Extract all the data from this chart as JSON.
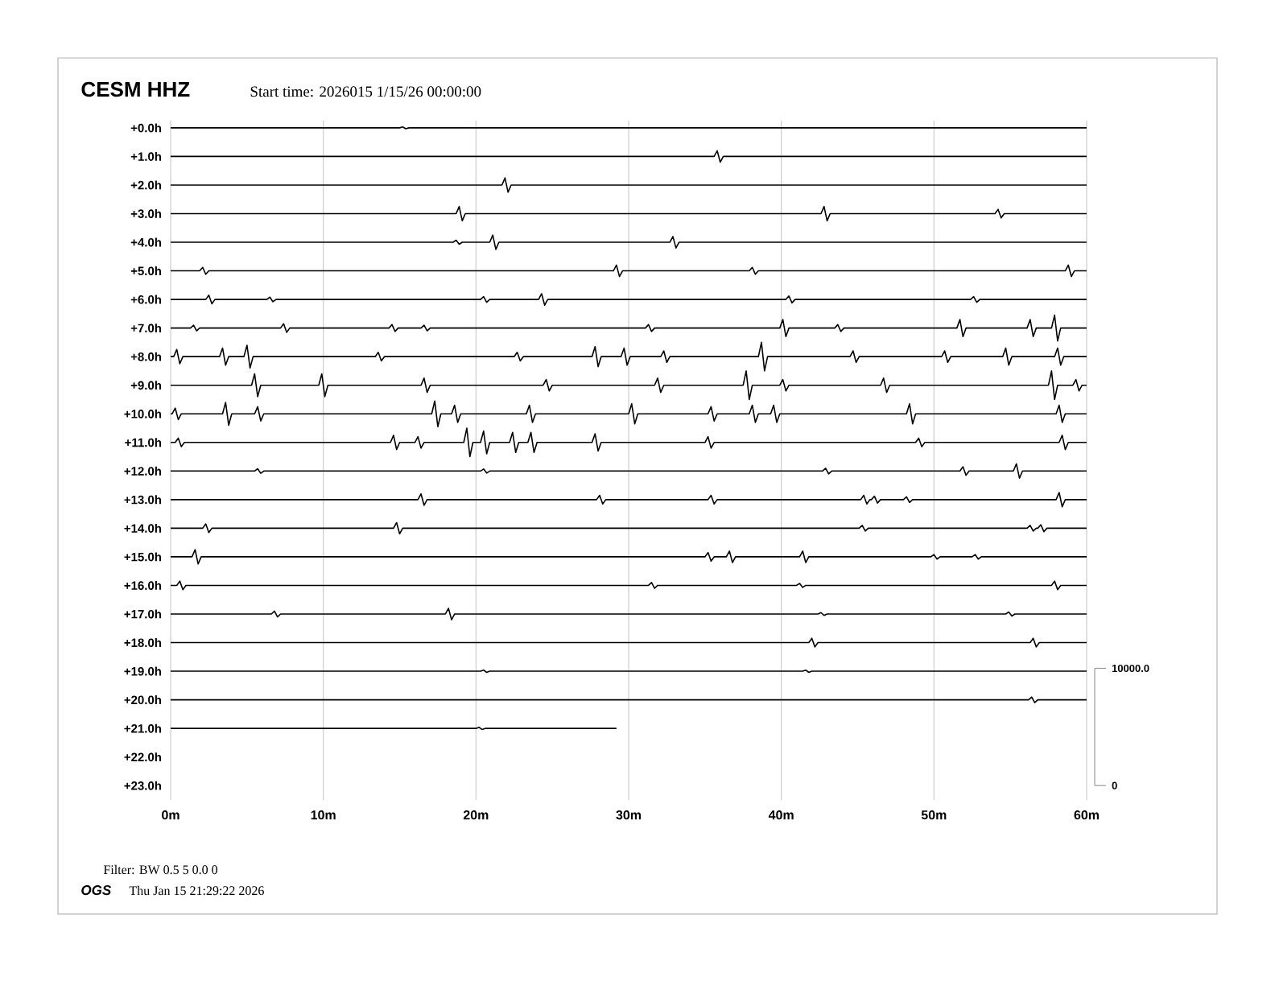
{
  "chart_data": {
    "type": "line",
    "title": "CESM HHZ",
    "subtitle": "Start time: 2026015  1/15/26 00:00:00",
    "xlim": [
      0,
      60
    ],
    "xticks": [
      {
        "value": 0,
        "label": "0m"
      },
      {
        "value": 10,
        "label": "10m"
      },
      {
        "value": 20,
        "label": "20m"
      },
      {
        "value": 30,
        "label": "30m"
      },
      {
        "value": 40,
        "label": "40m"
      },
      {
        "value": 50,
        "label": "50m"
      },
      {
        "value": 60,
        "label": "60m"
      }
    ],
    "ylim": [
      23.5,
      -0.25
    ],
    "yticks": [
      {
        "value": 0,
        "label": "+0.0h"
      },
      {
        "value": 1,
        "label": "+1.0h"
      },
      {
        "value": 2,
        "label": "+2.0h"
      },
      {
        "value": 3,
        "label": "+3.0h"
      },
      {
        "value": 4,
        "label": "+4.0h"
      },
      {
        "value": 5,
        "label": "+5.0h"
      },
      {
        "value": 6,
        "label": "+6.0h"
      },
      {
        "value": 7,
        "label": "+7.0h"
      },
      {
        "value": 8,
        "label": "+8.0h"
      },
      {
        "value": 9,
        "label": "+9.0h"
      },
      {
        "value": 10,
        "label": "+10.0h"
      },
      {
        "value": 11,
        "label": "+11.0h"
      },
      {
        "value": 12,
        "label": "+12.0h"
      },
      {
        "value": 13,
        "label": "+13.0h"
      },
      {
        "value": 14,
        "label": "+14.0h"
      },
      {
        "value": 15,
        "label": "+15.0h"
      },
      {
        "value": 16,
        "label": "+16.0h"
      },
      {
        "value": 17,
        "label": "+17.0h"
      },
      {
        "value": 18,
        "label": "+18.0h"
      },
      {
        "value": 19,
        "label": "+19.0h"
      },
      {
        "value": 20,
        "label": "+20.0h"
      },
      {
        "value": 21,
        "label": "+21.0h"
      },
      {
        "value": 22,
        "label": "+22.0h"
      },
      {
        "value": 23,
        "label": "+23.0h"
      }
    ],
    "y2lim": [
      -1220,
      56700
    ],
    "y2ticks": [
      0,
      {
        "value": 10000,
        "label": "10000.0"
      }
    ],
    "grid": "x",
    "annotations": [
      "Filter: BW 0.5 5 0.0 0",
      "OGS",
      "Thu Jan 15 21:29:22 2026"
    ],
    "series": [
      {
        "color": "#000000",
        "x": [
          0,
          15,
          15.2,
          15.4,
          15.6,
          60
        ],
        "values": [
          0,
          0,
          -0.03,
          0.03,
          0,
          0
        ]
      },
      {
        "color": "#000000",
        "x": [
          0,
          35.6,
          35.8,
          36,
          36.2,
          60
        ],
        "values": [
          1,
          1,
          0.8,
          1.2,
          1,
          1
        ]
      },
      {
        "color": "#000000",
        "x": [
          0,
          21.7,
          21.9,
          22.1,
          22.3,
          60
        ],
        "values": [
          2,
          2,
          1.75,
          2.25,
          2,
          2
        ]
      },
      {
        "color": "#000000",
        "x": [
          0,
          18.7,
          18.9,
          19.1,
          19.3,
          42.6,
          42.8,
          43,
          43.2,
          54,
          54.2,
          54.4,
          54.6,
          60
        ],
        "values": [
          3,
          3,
          2.75,
          3.25,
          3,
          3,
          2.75,
          3.25,
          3,
          3,
          2.85,
          3.15,
          3,
          3
        ]
      },
      {
        "color": "#000000",
        "x": [
          0,
          18.5,
          18.7,
          18.9,
          19.1,
          20.9,
          21.1,
          21.3,
          21.5,
          32.7,
          32.9,
          33.1,
          33.3,
          60
        ],
        "values": [
          4,
          4,
          3.93,
          4.07,
          4,
          4,
          3.75,
          4.25,
          4,
          4,
          3.8,
          4.2,
          4,
          4
        ]
      },
      {
        "color": "#000000",
        "x": [
          0,
          1.9,
          2.1,
          2.3,
          2.5,
          29,
          29.2,
          29.4,
          29.6,
          37.9,
          38.1,
          38.3,
          38.5,
          58.6,
          58.8,
          59,
          59.2,
          60
        ],
        "values": [
          5,
          5,
          4.88,
          5.12,
          5,
          5,
          4.8,
          5.2,
          5,
          5,
          4.88,
          5.12,
          5,
          5,
          4.8,
          5.2,
          5,
          5
        ]
      },
      {
        "color": "#000000",
        "x": [
          0,
          2.3,
          2.5,
          2.7,
          2.9,
          6.3,
          6.5,
          6.7,
          6.9,
          20.3,
          20.5,
          20.7,
          20.9,
          24.1,
          24.3,
          24.5,
          24.7,
          40.3,
          40.5,
          40.7,
          40.9,
          52.4,
          52.6,
          52.8,
          53,
          60
        ],
        "values": [
          6,
          6,
          5.85,
          6.15,
          6,
          6,
          5.92,
          6.08,
          6,
          6,
          5.9,
          6.1,
          6,
          6,
          5.8,
          6.2,
          6,
          6,
          5.88,
          6.12,
          6,
          6,
          5.9,
          6.1,
          6,
          6
        ]
      },
      {
        "color": "#000000",
        "x": [
          0,
          1.3,
          1.5,
          1.7,
          1.9,
          7.2,
          7.4,
          7.6,
          7.8,
          14.3,
          14.5,
          14.7,
          14.9,
          16.4,
          16.6,
          16.8,
          17,
          31.1,
          31.3,
          31.5,
          31.7,
          39.9,
          40.1,
          40.3,
          40.5,
          43.5,
          43.7,
          43.9,
          44.1,
          51.5,
          51.7,
          51.9,
          52.1,
          56.1,
          56.3,
          56.5,
          56.7,
          57.7,
          57.9,
          58.1,
          58.3,
          60
        ],
        "values": [
          7,
          7,
          6.9,
          7.1,
          7,
          7,
          6.85,
          7.15,
          7,
          7,
          6.88,
          7.12,
          7,
          7,
          6.9,
          7.1,
          7,
          7,
          6.88,
          7.12,
          7,
          7,
          6.7,
          7.3,
          7,
          7,
          6.88,
          7.12,
          7,
          7,
          6.7,
          7.3,
          7,
          7,
          6.7,
          7.3,
          7,
          7,
          6.55,
          7.45,
          7,
          7
        ]
      },
      {
        "color": "#000000",
        "x": [
          0,
          0.2,
          0.4,
          0.6,
          0.8,
          3.2,
          3.4,
          3.6,
          3.8,
          4.8,
          5,
          5.2,
          5.4,
          13.4,
          13.6,
          13.8,
          14,
          22.5,
          22.7,
          22.9,
          23.1,
          27.6,
          27.8,
          28,
          28.2,
          29.5,
          29.7,
          29.9,
          30.1,
          32.1,
          32.3,
          32.5,
          32.7,
          38.5,
          38.7,
          38.9,
          39.1,
          44.5,
          44.7,
          44.9,
          45.1,
          50.5,
          50.7,
          50.9,
          51.1,
          54.5,
          54.7,
          54.9,
          55.1,
          57.9,
          58.1,
          58.3,
          58.5,
          60
        ],
        "values": [
          8,
          8,
          7.75,
          8.25,
          8,
          8,
          7.7,
          8.3,
          8,
          8,
          7.6,
          8.4,
          8,
          8,
          7.85,
          8.15,
          8,
          8,
          7.85,
          8.15,
          8,
          8,
          7.65,
          8.35,
          8,
          8,
          7.7,
          8.3,
          8,
          8,
          7.8,
          8.2,
          8,
          8,
          7.5,
          8.5,
          8,
          8,
          7.8,
          8.2,
          8,
          8,
          7.8,
          8.2,
          8,
          8,
          7.7,
          8.3,
          8,
          8,
          7.7,
          8.3,
          8,
          8
        ]
      },
      {
        "color": "#000000",
        "x": [
          0,
          5.3,
          5.5,
          5.7,
          5.9,
          9.7,
          9.9,
          10.1,
          10.3,
          16.4,
          16.6,
          16.8,
          17,
          24.4,
          24.6,
          24.8,
          25,
          31.7,
          31.9,
          32.1,
          32.3,
          37.5,
          37.7,
          37.9,
          38.1,
          39.9,
          40.1,
          40.3,
          40.5,
          46.5,
          46.7,
          46.9,
          47.1,
          57.5,
          57.7,
          57.9,
          58.1,
          59.1,
          59.3,
          59.5,
          59.7,
          60
        ],
        "values": [
          9,
          9,
          8.6,
          9.4,
          9,
          9,
          8.6,
          9.4,
          9,
          9,
          8.75,
          9.25,
          9,
          9,
          8.8,
          9.2,
          9,
          9,
          8.75,
          9.25,
          9,
          9,
          8.5,
          9.5,
          9,
          9,
          8.8,
          9.2,
          9,
          9,
          8.75,
          9.25,
          9,
          9,
          8.5,
          9.5,
          9,
          9,
          8.8,
          9.2,
          9,
          9
        ]
      },
      {
        "color": "#000000",
        "x": [
          0,
          0.1,
          0.3,
          0.5,
          0.7,
          3.4,
          3.6,
          3.8,
          4,
          5.5,
          5.7,
          5.9,
          6.1,
          17.1,
          17.3,
          17.5,
          17.7,
          18.4,
          18.6,
          18.8,
          19,
          23.3,
          23.5,
          23.7,
          23.9,
          30,
          30.2,
          30.4,
          30.6,
          35.2,
          35.4,
          35.6,
          35.8,
          37.9,
          38.1,
          38.3,
          38.5,
          39.3,
          39.5,
          39.7,
          39.9,
          48.2,
          48.4,
          48.6,
          48.8,
          58,
          58.2,
          58.4,
          58.6,
          60
        ],
        "values": [
          10,
          10,
          9.8,
          10.2,
          10,
          10,
          9.6,
          10.4,
          10,
          10,
          9.75,
          10.25,
          10,
          10,
          9.55,
          10.45,
          10,
          10,
          9.7,
          10.3,
          10,
          10,
          9.7,
          10.3,
          10,
          10,
          9.65,
          10.35,
          10,
          10,
          9.75,
          10.25,
          10,
          10,
          9.7,
          10.3,
          10,
          10,
          9.7,
          10.3,
          10,
          10,
          9.65,
          10.35,
          10,
          10,
          9.7,
          10.3,
          10,
          10
        ]
      },
      {
        "color": "#000000",
        "x": [
          0,
          0.3,
          0.5,
          0.7,
          0.9,
          14.4,
          14.6,
          14.8,
          15,
          16,
          16.2,
          16.4,
          16.6,
          19.2,
          19.4,
          19.6,
          19.8,
          20.3,
          20.5,
          20.7,
          20.9,
          22.2,
          22.4,
          22.6,
          22.8,
          23.4,
          23.6,
          23.8,
          24,
          27.6,
          27.8,
          28,
          28.2,
          35,
          35.2,
          35.4,
          35.6,
          48.8,
          49,
          49.2,
          49.4,
          58.2,
          58.4,
          58.6,
          58.8,
          60
        ],
        "values": [
          11,
          11,
          10.85,
          11.15,
          11,
          11,
          10.75,
          11.25,
          11,
          11,
          10.8,
          11.2,
          11,
          11,
          10.5,
          11.5,
          11,
          11,
          10.6,
          11.4,
          11,
          11,
          10.65,
          11.35,
          11,
          11,
          10.65,
          11.35,
          11,
          11,
          10.7,
          11.3,
          11,
          11,
          10.8,
          11.2,
          11,
          11,
          10.85,
          11.15,
          11,
          11,
          10.75,
          11.25,
          11,
          11
        ]
      },
      {
        "color": "#000000",
        "x": [
          0,
          5.5,
          5.7,
          5.9,
          6.1,
          20.3,
          20.5,
          20.7,
          20.9,
          42.7,
          42.9,
          43.1,
          43.3,
          51.7,
          51.9,
          52.1,
          52.3,
          55.2,
          55.4,
          55.6,
          55.8,
          60
        ],
        "values": [
          12,
          12,
          11.92,
          12.08,
          12,
          12,
          11.93,
          12.07,
          12,
          12,
          11.9,
          12.1,
          12,
          12,
          11.85,
          12.15,
          12,
          12,
          11.75,
          12.25,
          12,
          12
        ]
      },
      {
        "color": "#000000",
        "x": [
          0,
          16.2,
          16.4,
          16.6,
          16.8,
          27.9,
          28.1,
          28.3,
          28.5,
          35.2,
          35.4,
          35.6,
          35.8,
          45.2,
          45.4,
          45.6,
          45.8,
          45.9,
          46.1,
          46.3,
          46.5,
          48,
          48.2,
          48.4,
          48.6,
          58,
          58.2,
          58.4,
          58.6,
          60
        ],
        "values": [
          13,
          13,
          12.8,
          13.2,
          13,
          13,
          12.85,
          13.15,
          13,
          13,
          12.85,
          13.15,
          13,
          13,
          12.85,
          13.15,
          13,
          13,
          12.88,
          13.12,
          13,
          13,
          12.9,
          13.1,
          13,
          13,
          12.75,
          13.25,
          13,
          13
        ]
      },
      {
        "color": "#000000",
        "x": [
          0,
          2.1,
          2.3,
          2.5,
          2.7,
          14.6,
          14.8,
          15,
          15.2,
          45.1,
          45.3,
          45.5,
          45.7,
          56.1,
          56.3,
          56.5,
          56.7,
          56.8,
          57,
          57.2,
          57.4,
          60
        ],
        "values": [
          14,
          14,
          13.85,
          14.15,
          14,
          14,
          13.8,
          14.2,
          14,
          14,
          13.9,
          14.1,
          14,
          14,
          13.9,
          14.1,
          14,
          14,
          13.88,
          14.12,
          14,
          14
        ]
      },
      {
        "color": "#000000",
        "x": [
          0,
          1.4,
          1.6,
          1.8,
          2,
          35,
          35.2,
          35.4,
          35.6,
          36.4,
          36.6,
          36.8,
          37,
          41.2,
          41.4,
          41.6,
          41.8,
          49.8,
          50,
          50.2,
          50.4,
          52.5,
          52.7,
          52.9,
          53.1,
          60
        ],
        "values": [
          15,
          15,
          14.75,
          15.25,
          15,
          15,
          14.85,
          15.15,
          15,
          15,
          14.8,
          15.2,
          15,
          15,
          14.8,
          15.2,
          15,
          15,
          14.92,
          15.08,
          15,
          15,
          14.92,
          15.08,
          15,
          15
        ]
      },
      {
        "color": "#000000",
        "x": [
          0,
          0.4,
          0.6,
          0.8,
          1,
          31.3,
          31.5,
          31.7,
          31.9,
          41,
          41.2,
          41.4,
          41.6,
          57.7,
          57.9,
          58.1,
          58.3,
          60
        ],
        "values": [
          16,
          16,
          15.85,
          16.15,
          16,
          16,
          15.9,
          16.1,
          16,
          16,
          15.93,
          16.07,
          16,
          16,
          15.85,
          16.15,
          16,
          16
        ]
      },
      {
        "color": "#000000",
        "x": [
          0,
          6.6,
          6.8,
          7,
          7.2,
          18,
          18.2,
          18.4,
          18.6,
          42.4,
          42.6,
          42.8,
          43,
          54.7,
          54.9,
          55.1,
          55.3,
          60
        ],
        "values": [
          17,
          17,
          16.9,
          17.1,
          17,
          17,
          16.8,
          17.2,
          17,
          17,
          16.95,
          17.05,
          17,
          17,
          16.93,
          17.07,
          17,
          17
        ]
      },
      {
        "color": "#000000",
        "x": [
          0,
          41.8,
          42,
          42.2,
          42.4,
          56.3,
          56.5,
          56.7,
          56.9,
          60
        ],
        "values": [
          18,
          18,
          17.85,
          18.15,
          18,
          18,
          17.85,
          18.15,
          18,
          18
        ]
      },
      {
        "color": "#000000",
        "x": [
          0,
          20.3,
          20.5,
          20.7,
          20.9,
          41.4,
          41.6,
          41.8,
          42,
          60
        ],
        "values": [
          19,
          19,
          18.96,
          19.04,
          19,
          19,
          18.96,
          19.04,
          19,
          19
        ]
      },
      {
        "color": "#000000",
        "x": [
          0,
          56.2,
          56.4,
          56.6,
          56.8,
          60
        ],
        "values": [
          20,
          20,
          19.9,
          20.1,
          20,
          20
        ]
      },
      {
        "color": "#000000",
        "x": [
          0,
          20,
          20.2,
          20.4,
          20.6,
          29.2
        ],
        "values": [
          21,
          21,
          20.96,
          21.04,
          21,
          21
        ]
      }
    ]
  }
}
